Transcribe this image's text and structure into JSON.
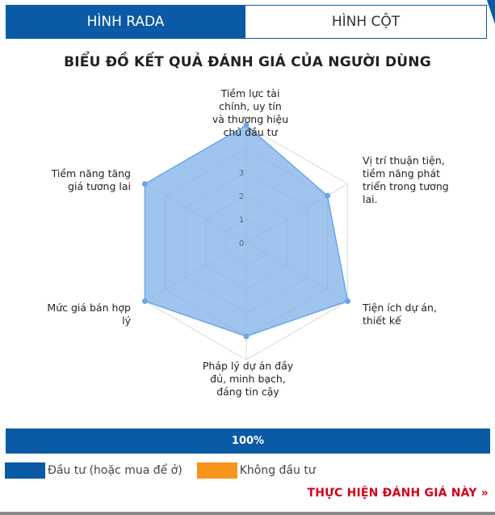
{
  "tabs": [
    {
      "label": "HÌNH RADA",
      "active": true
    },
    {
      "label": "HÌNH CỘT",
      "active": false
    }
  ],
  "chart_data": {
    "type": "radar",
    "title": "BIỂU ĐỒ KẾT QUẢ ĐÁNH GIÁ CỦA NGƯỜI DÙNG",
    "categories": [
      "Tiềm lực tài chính, uy tín và thương hiệu chủ đầu tư",
      "Vị trí thuận tiện, tiềm năng phát triển trong tương lai.",
      "Tiện ích dự án, thiết kế",
      "Pháp lý dự án đầy đủ, minh bạch, đáng tin cậy",
      "Mức giá bán hợp lý",
      "Tiềm năng tăng giá tương lai"
    ],
    "series": [
      {
        "values": [
          5,
          4,
          5,
          4,
          5,
          5
        ]
      }
    ],
    "ticks": [
      "0",
      "1",
      "2",
      "3"
    ],
    "rmax": 5,
    "series_color": "#7fb2ea",
    "grid": true
  },
  "progress": {
    "label": "100%",
    "value": 1.0
  },
  "legend": [
    {
      "label": "Đầu tư (hoặc mua để ở)",
      "color": "#0b5aa6"
    },
    {
      "label": "Không đầu tư",
      "color": "#f7941d"
    }
  ],
  "cta": {
    "label": "THỰC HIỆN ĐÁNH GIÁ NÀY »"
  },
  "colors": {
    "accent": "#0b5aa6",
    "cta": "#d0021b"
  }
}
